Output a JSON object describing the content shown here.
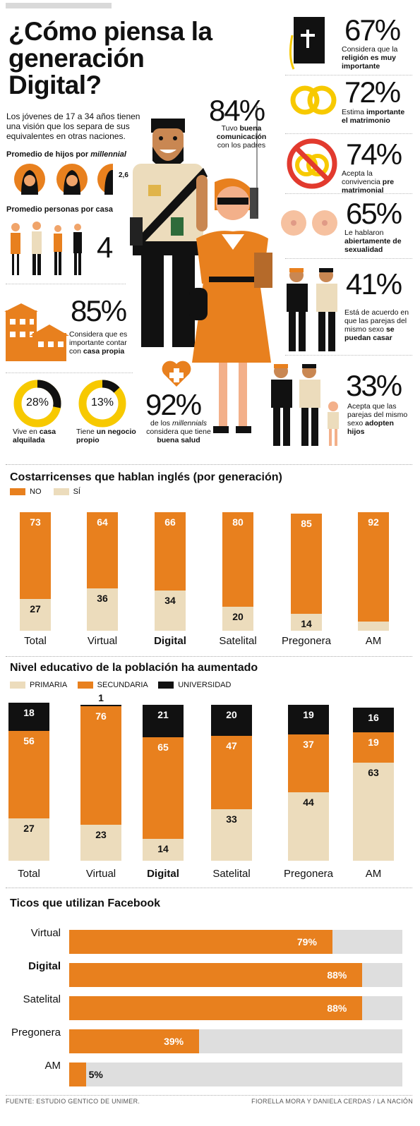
{
  "title": "¿Cómo piensa la generación Digital?",
  "intro": "Los jóvenes de 17 a 34 años tienen una visión que los separa de sus equivalentes en otras naciones.",
  "colors": {
    "orange": "#e8801e",
    "beige": "#ecdcbc",
    "black": "#111111",
    "gray": "#dedede",
    "yellow": "#f7c900",
    "red": "#e23a2e"
  },
  "hijos": {
    "label_pre": "Promedio de hijos por ",
    "label_em": "millennial",
    "value": "2,6"
  },
  "personas": {
    "label": "Promedio personas por casa",
    "value": "4"
  },
  "casa_propia": {
    "value": "85%",
    "text_pre": "Considera que es importante contar con ",
    "text_bold": "casa propia"
  },
  "alquilada": {
    "value": "28%",
    "text_pre": "Vive en ",
    "text_bold": "casa alquilada",
    "pct": 28
  },
  "negocio": {
    "value": "13%",
    "text_pre": "Tiene ",
    "text_bold": "un negocio propio",
    "pct": 13
  },
  "salud": {
    "value": "92%",
    "text_pre": "de los ",
    "text_em": "millennials",
    "text_mid": " considera que tiene ",
    "text_bold": "buena salud"
  },
  "comunicacion": {
    "value": "84%",
    "text_pre": "Tuvo ",
    "text_bold": "buena comunicación",
    "text_post": " con los padres"
  },
  "religion": {
    "value": "67%",
    "text_pre": "Considera que la ",
    "text_bold": "religión es muy importante"
  },
  "matrimonio": {
    "value": "72%",
    "text_pre": "Estima ",
    "text_bold": "importante el matrimonio"
  },
  "convivencia": {
    "value": "74%",
    "text_pre": "Acepta la convivencia ",
    "text_bold": "pre matrimonial"
  },
  "sexualidad": {
    "value": "65%",
    "text_pre": "Le hablaron ",
    "text_bold": "abiertamente de sexualidad"
  },
  "casar": {
    "value": "41%",
    "text_pre": "Está de acuerdo en que las parejas del mismo sexo ",
    "text_bold": "se puedan casar"
  },
  "adoptar": {
    "value": "33%",
    "text_pre": "Acepta que las parejas del mismo sexo ",
    "text_bold": "adopten hijos"
  },
  "chart_data": [
    {
      "type": "bar",
      "title": "Costarricenses que hablan inglés (por generación)",
      "categories": [
        "Total",
        "Virtual",
        "Digital",
        "Satelital",
        "Pregonera",
        "AM"
      ],
      "bold_category": "Digital",
      "series": [
        {
          "name": "NO",
          "values": [
            73,
            64,
            66,
            80,
            85,
            92
          ]
        },
        {
          "name": "SÍ",
          "values": [
            27,
            36,
            34,
            20,
            14,
            8
          ]
        }
      ]
    },
    {
      "type": "bar",
      "title": "Nivel educativo de la población ha aumentado",
      "categories": [
        "Total",
        "Virtual",
        "Digital",
        "Satelital",
        "Pregonera",
        "AM"
      ],
      "bold_category": "Digital",
      "series": [
        {
          "name": "PRIMARIA",
          "values": [
            27,
            23,
            14,
            33,
            44,
            63
          ]
        },
        {
          "name": "SECUNDARIA",
          "values": [
            56,
            76,
            65,
            47,
            37,
            19
          ]
        },
        {
          "name": "UNIVERSIDAD",
          "values": [
            18,
            1,
            21,
            20,
            19,
            16
          ]
        }
      ]
    },
    {
      "type": "bar",
      "title": "Ticos que utilizan Facebook",
      "categories": [
        "Virtual",
        "Digital",
        "Satelital",
        "Pregonera",
        "AM"
      ],
      "bold_category": "Digital",
      "values": [
        79,
        88,
        88,
        39,
        5
      ],
      "value_labels": [
        "79%",
        "88%",
        "88%",
        "39%",
        "5%"
      ],
      "xlim": [
        0,
        100
      ]
    }
  ],
  "footer": {
    "left": "FUENTE: ESTUDIO GENTICO DE UNIMER.",
    "right": "FIORELLA MORA Y DANIELA CERDAS / LA NACIÓN"
  }
}
